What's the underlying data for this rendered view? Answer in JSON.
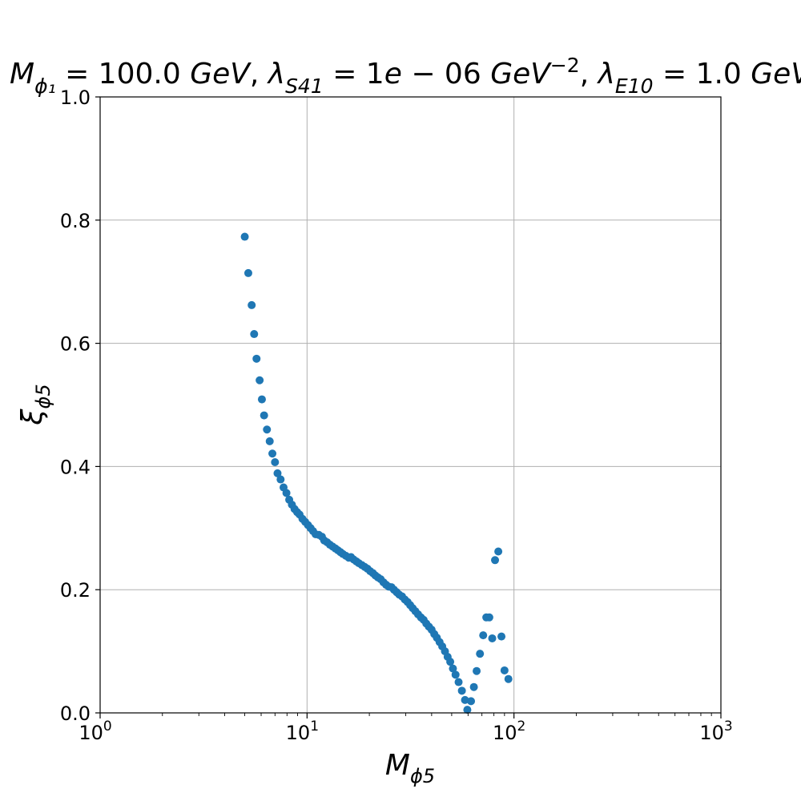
{
  "chart_data": {
    "type": "scatter",
    "title": {
      "parts": [
        {
          "text": "M",
          "italic": true
        },
        {
          "text": "ϕ₁",
          "italic": true,
          "sub": true
        },
        {
          "text": " = 100.0 ",
          "italic": false
        },
        {
          "text": "GeV",
          "italic": true
        },
        {
          "text": ", ",
          "italic": false
        },
        {
          "text": "λ",
          "italic": true
        },
        {
          "text": "S41",
          "italic": true,
          "sub": true
        },
        {
          "text": " = 1",
          "italic": false
        },
        {
          "text": "e",
          "italic": true
        },
        {
          "text": " − 06 ",
          "italic": false
        },
        {
          "text": "GeV",
          "italic": true
        },
        {
          "text": "−2",
          "italic": false,
          "sup": true
        },
        {
          "text": ", ",
          "italic": false
        },
        {
          "text": "λ",
          "italic": true
        },
        {
          "text": "E10",
          "italic": true,
          "sub": true
        },
        {
          "text": " = 1.0 ",
          "italic": false
        },
        {
          "text": "GeV",
          "italic": true
        }
      ]
    },
    "xlabel": {
      "main": "M",
      "sub": "ϕ5"
    },
    "ylabel": {
      "main": "ξ",
      "sub": "ϕ5"
    },
    "x_scale": "log",
    "xlim": [
      1,
      1000
    ],
    "ylim": [
      0,
      1
    ],
    "x_ticks": [
      {
        "value": 1,
        "base": "10",
        "exp": "0"
      },
      {
        "value": 10,
        "base": "10",
        "exp": "1"
      },
      {
        "value": 100,
        "base": "10",
        "exp": "2"
      },
      {
        "value": 1000,
        "base": "10",
        "exp": "3"
      }
    ],
    "y_ticks": [
      "0.0",
      "0.2",
      "0.4",
      "0.6",
      "0.8",
      "1.0"
    ],
    "grid": true,
    "marker_color": "#1f77b4",
    "points": [
      [
        5.0,
        0.773
      ],
      [
        5.2,
        0.714
      ],
      [
        5.4,
        0.662
      ],
      [
        5.55,
        0.615
      ],
      [
        5.7,
        0.575
      ],
      [
        5.9,
        0.54
      ],
      [
        6.05,
        0.509
      ],
      [
        6.2,
        0.483
      ],
      [
        6.4,
        0.46
      ],
      [
        6.6,
        0.441
      ],
      [
        6.8,
        0.421
      ],
      [
        7.0,
        0.407
      ],
      [
        7.2,
        0.389
      ],
      [
        7.45,
        0.379
      ],
      [
        7.7,
        0.366
      ],
      [
        7.95,
        0.357
      ],
      [
        8.2,
        0.346
      ],
      [
        8.45,
        0.338
      ],
      [
        8.7,
        0.331
      ],
      [
        8.95,
        0.326
      ],
      [
        9.2,
        0.322
      ],
      [
        9.5,
        0.315
      ],
      [
        9.8,
        0.31
      ],
      [
        10.1,
        0.305
      ],
      [
        10.4,
        0.3
      ],
      [
        10.7,
        0.295
      ],
      [
        11.0,
        0.29
      ],
      [
        11.4,
        0.289
      ],
      [
        11.8,
        0.286
      ],
      [
        12.1,
        0.28
      ],
      [
        12.5,
        0.277
      ],
      [
        12.9,
        0.273
      ],
      [
        13.3,
        0.27
      ],
      [
        13.7,
        0.267
      ],
      [
        14.1,
        0.264
      ],
      [
        14.5,
        0.261
      ],
      [
        14.9,
        0.258
      ],
      [
        15.4,
        0.255
      ],
      [
        15.9,
        0.252
      ],
      [
        16.3,
        0.253
      ],
      [
        16.8,
        0.249
      ],
      [
        17.3,
        0.246
      ],
      [
        17.8,
        0.243
      ],
      [
        18.4,
        0.24
      ],
      [
        19.0,
        0.237
      ],
      [
        19.6,
        0.234
      ],
      [
        20.2,
        0.23
      ],
      [
        20.8,
        0.227
      ],
      [
        21.4,
        0.223
      ],
      [
        22.0,
        0.22
      ],
      [
        22.7,
        0.217
      ],
      [
        23.4,
        0.212
      ],
      [
        24.1,
        0.208
      ],
      [
        24.8,
        0.205
      ],
      [
        25.6,
        0.204
      ],
      [
        26.3,
        0.2
      ],
      [
        27.1,
        0.196
      ],
      [
        27.9,
        0.192
      ],
      [
        28.8,
        0.189
      ],
      [
        29.7,
        0.184
      ],
      [
        30.6,
        0.18
      ],
      [
        31.5,
        0.175
      ],
      [
        32.4,
        0.17
      ],
      [
        33.4,
        0.165
      ],
      [
        34.4,
        0.16
      ],
      [
        35.5,
        0.155
      ],
      [
        36.6,
        0.151
      ],
      [
        37.7,
        0.145
      ],
      [
        38.8,
        0.14
      ],
      [
        40.0,
        0.135
      ],
      [
        41.2,
        0.128
      ],
      [
        42.4,
        0.122
      ],
      [
        43.7,
        0.115
      ],
      [
        45.0,
        0.108
      ],
      [
        46.4,
        0.1
      ],
      [
        47.8,
        0.091
      ],
      [
        49.2,
        0.083
      ],
      [
        50.7,
        0.072
      ],
      [
        52.2,
        0.062
      ],
      [
        54.0,
        0.05
      ],
      [
        56.0,
        0.036
      ],
      [
        58.0,
        0.021
      ],
      [
        59.5,
        0.005
      ],
      [
        62.0,
        0.019
      ],
      [
        64.0,
        0.042
      ],
      [
        66.0,
        0.068
      ],
      [
        68.5,
        0.096
      ],
      [
        71.0,
        0.126
      ],
      [
        73.5,
        0.155
      ],
      [
        76.0,
        0.155
      ],
      [
        78.5,
        0.121
      ],
      [
        81.0,
        0.248
      ],
      [
        84.0,
        0.262
      ],
      [
        87.0,
        0.124
      ],
      [
        90.0,
        0.069
      ],
      [
        94.0,
        0.055
      ]
    ]
  }
}
